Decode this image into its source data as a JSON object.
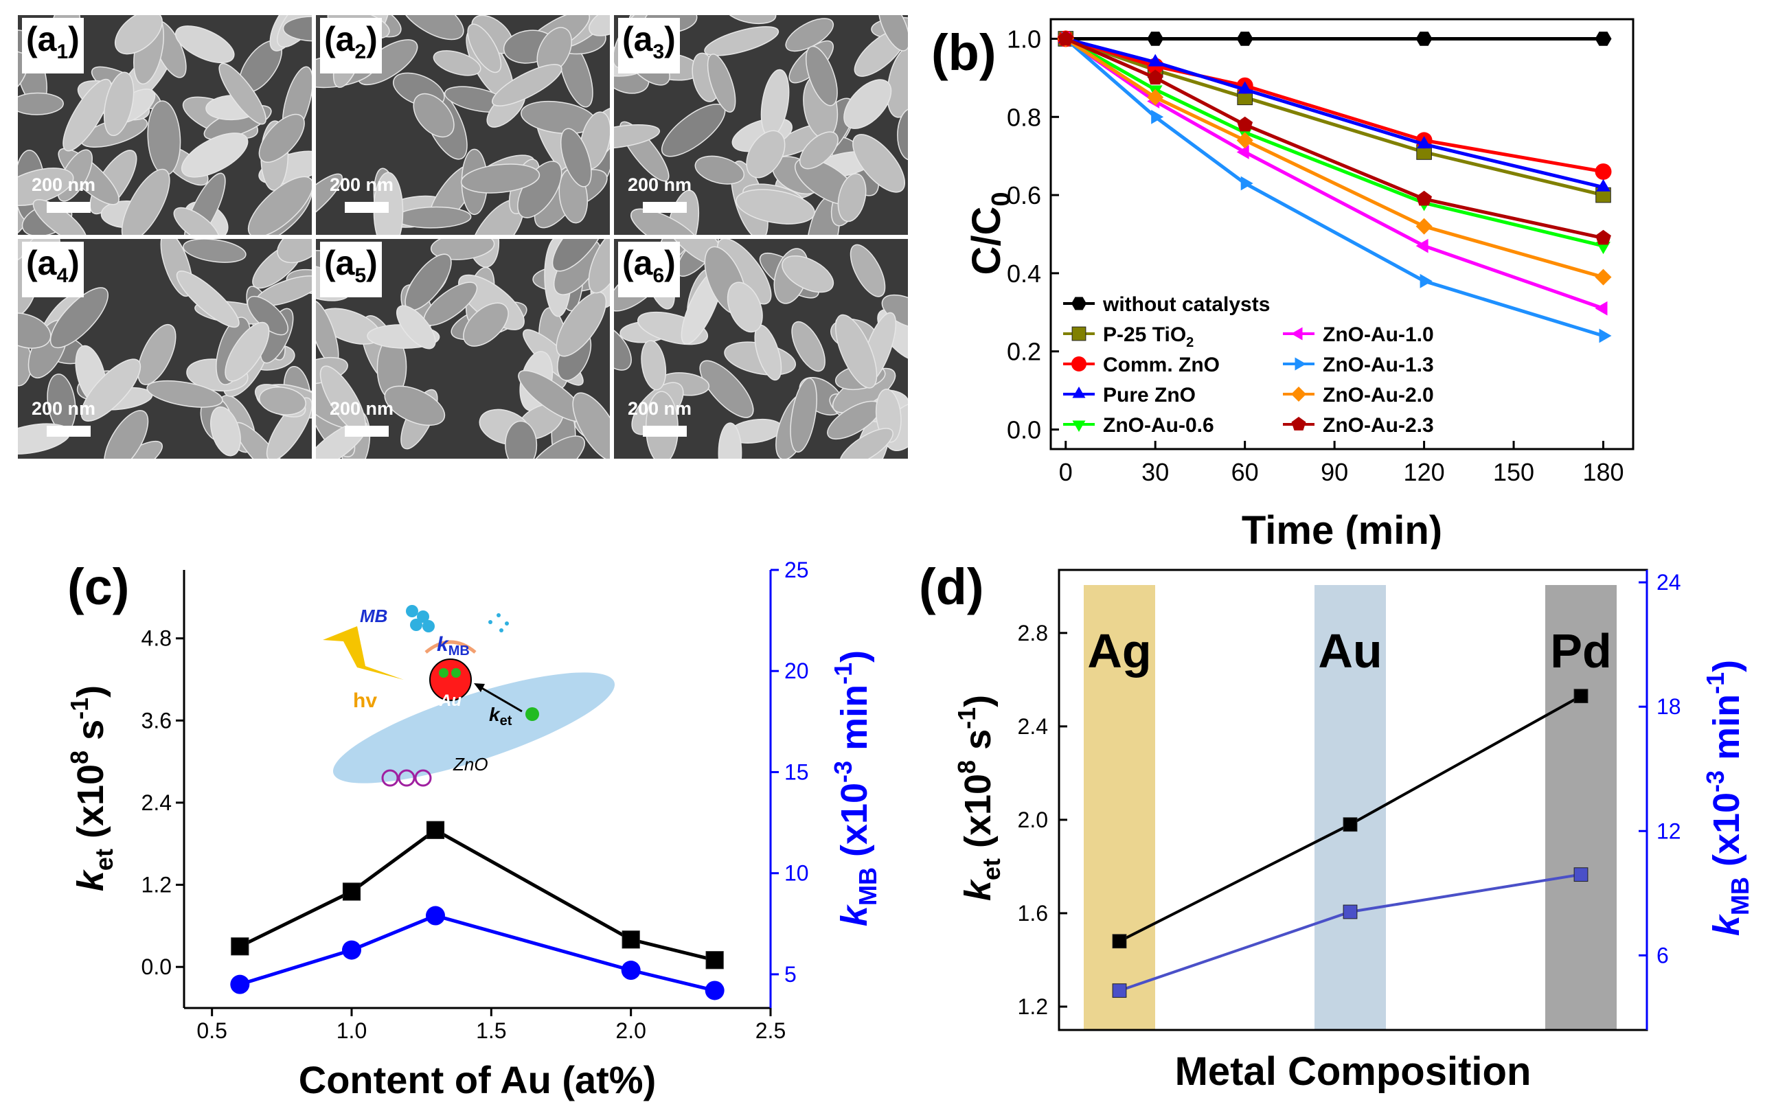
{
  "sem_panels": [
    {
      "label": "a",
      "sub": "1",
      "scale": "200 nm"
    },
    {
      "label": "a",
      "sub": "2",
      "scale": "200 nm"
    },
    {
      "label": "a",
      "sub": "3",
      "scale": "200 nm"
    },
    {
      "label": "a",
      "sub": "4",
      "scale": "200 nm"
    },
    {
      "label": "a",
      "sub": "5",
      "scale": "200 nm"
    },
    {
      "label": "a",
      "sub": "6",
      "scale": "200 nm"
    }
  ],
  "chart_data": [
    {
      "panel": "(b)",
      "type": "line",
      "x": [
        0,
        30,
        60,
        120,
        180
      ],
      "xlabel": "Time (min)",
      "ylabel": "C/C",
      "ylabel_sub": "0",
      "xlim": [
        -5,
        190
      ],
      "ylim": [
        -0.05,
        1.05
      ],
      "xticks": [
        0,
        30,
        60,
        90,
        120,
        150,
        180
      ],
      "yticks": [
        "0.0",
        "0.2",
        "0.4",
        "0.6",
        "0.8",
        "1.0"
      ],
      "series": [
        {
          "name": "without catalysts",
          "color": "#000000",
          "marker": "hexagon",
          "values": [
            1.0,
            1.0,
            1.0,
            1.0,
            1.0
          ]
        },
        {
          "name": "P-25 TiO",
          "sub": "2",
          "color": "#808000",
          "marker": "square",
          "values": [
            1.0,
            0.92,
            0.85,
            0.71,
            0.6
          ]
        },
        {
          "name": "Comm. ZnO",
          "color": "#ff0000",
          "marker": "circle",
          "values": [
            1.0,
            0.93,
            0.88,
            0.74,
            0.66
          ]
        },
        {
          "name": "Pure ZnO",
          "color": "#0000ff",
          "marker": "triangle-up",
          "values": [
            1.0,
            0.94,
            0.87,
            0.73,
            0.62
          ]
        },
        {
          "name": "ZnO-Au-0.6",
          "color": "#00ff00",
          "marker": "triangle-down",
          "values": [
            1.0,
            0.87,
            0.76,
            0.58,
            0.47
          ]
        },
        {
          "name": "ZnO-Au-1.0",
          "color": "#ff00ff",
          "marker": "triangle-left",
          "values": [
            1.0,
            0.84,
            0.71,
            0.47,
            0.31
          ]
        },
        {
          "name": "ZnO-Au-1.3",
          "color": "#1e90ff",
          "marker": "triangle-right",
          "values": [
            1.0,
            0.8,
            0.63,
            0.38,
            0.24
          ]
        },
        {
          "name": "ZnO-Au-2.0",
          "color": "#ff8c00",
          "marker": "diamond",
          "values": [
            1.0,
            0.85,
            0.74,
            0.52,
            0.39
          ]
        },
        {
          "name": "ZnO-Au-2.3",
          "color": "#b00000",
          "marker": "pentagon",
          "values": [
            1.0,
            0.9,
            0.78,
            0.59,
            0.49
          ]
        }
      ]
    },
    {
      "panel": "(c)",
      "type": "line",
      "x": [
        0.6,
        1.0,
        1.3,
        2.0,
        2.3
      ],
      "xlabel": "Content of Au (at%)",
      "xlim": [
        0.4,
        2.5
      ],
      "xticks": [
        "0.5",
        "1.0",
        "1.5",
        "2.0",
        "2.5"
      ],
      "left_axis": {
        "ylim": [
          -0.6,
          5.8
        ],
        "ticks": [
          "0.0",
          "1.2",
          "2.4",
          "3.6",
          "4.8"
        ],
        "label_k": "k",
        "label_sub": "et",
        "label_rest": " (x10",
        "label_exp": "8",
        "label_unit": " s",
        "label_unit_exp": "-1",
        "label_close": ")"
      },
      "right_axis": {
        "ylim": [
          3.333,
          25
        ],
        "ticks": [
          "5",
          "10",
          "15",
          "20",
          "25"
        ],
        "label_k": "k",
        "label_sub": "MB",
        "label_rest": " (x10",
        "label_exp": "-3",
        "label_unit": " min",
        "label_unit_exp": "-1",
        "label_close": ")",
        "color": "#0000ff"
      },
      "series": [
        {
          "name": "k_et",
          "axis": "left",
          "color": "#000000",
          "marker": "square",
          "values": [
            0.3,
            1.1,
            2.0,
            0.4,
            0.1
          ]
        },
        {
          "name": "k_MB",
          "axis": "right",
          "color": "#0000ff",
          "marker": "circle",
          "values": [
            4.5,
            6.2,
            7.9,
            5.2,
            4.2
          ]
        }
      ],
      "inset": {
        "mb": "MB",
        "kmb_k": "k",
        "kmb_sub": "MB",
        "hv": "hv",
        "au": "Au",
        "ket_k": "k",
        "ket_sub": "et",
        "zno": "ZnO"
      }
    },
    {
      "panel": "(d)",
      "type": "line",
      "categories": [
        "Ag",
        "Au",
        "Pd"
      ],
      "xlabel": "Metal Composition",
      "band_colors": [
        "#ebd590",
        "#c4d5e3",
        "#a6a6a6"
      ],
      "left_axis": {
        "ylim": [
          1.1,
          3.07
        ],
        "ticks": [
          "1.2",
          "1.6",
          "2.0",
          "2.4",
          "2.8"
        ],
        "label_k": "k",
        "label_sub": "et",
        "label_rest": " (x10",
        "label_exp": "8",
        "label_unit": " s",
        "label_unit_exp": "-1",
        "label_close": ")"
      },
      "right_axis": {
        "ylim": [
          2.4,
          24.6
        ],
        "ticks": [
          "6",
          "12",
          "18",
          "24"
        ],
        "label_k": "k",
        "label_sub": "MB",
        "label_rest": " (x10",
        "label_exp": "-3",
        "label_unit": " min",
        "label_unit_exp": "-1",
        "label_close": ")",
        "color": "#0000ff"
      },
      "series": [
        {
          "name": "k_et",
          "axis": "left",
          "color": "#000000",
          "marker": "square",
          "values": [
            1.48,
            1.98,
            2.53
          ]
        },
        {
          "name": "k_MB",
          "axis": "right",
          "color": "#4a50c8",
          "marker": "square",
          "values": [
            4.3,
            8.1,
            9.9
          ]
        }
      ]
    }
  ]
}
